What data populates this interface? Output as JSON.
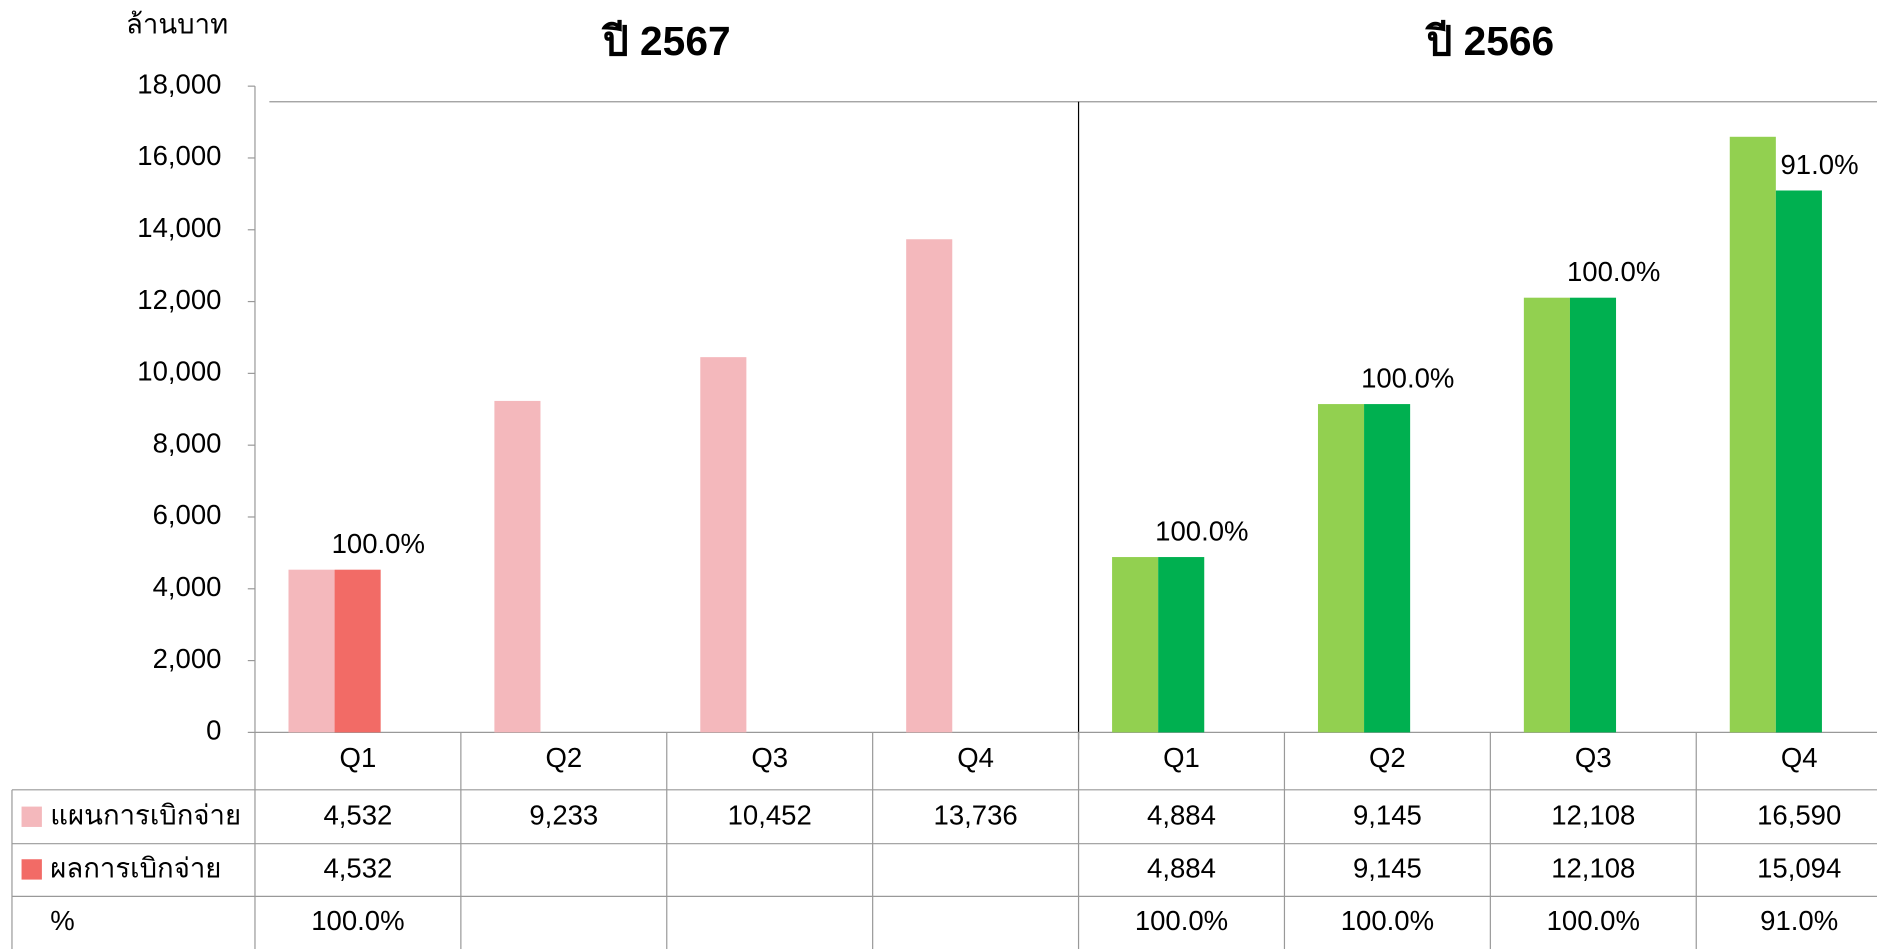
{
  "chart_data": {
    "type": "bar",
    "y_label": "ล้านบาท",
    "ylim": [
      0,
      18000
    ],
    "yticks": [
      0,
      {
        "value": 2000,
        "label": "2,000"
      },
      {
        "value": 4000,
        "label": "4,000"
      },
      {
        "value": 6000,
        "label": "6,000"
      },
      {
        "value": 8000,
        "label": "8,000"
      },
      {
        "value": 10000,
        "label": "10,000"
      },
      {
        "value": 12000,
        "label": "12,000"
      },
      {
        "value": 14000,
        "label": "14,000"
      },
      {
        "value": 16000,
        "label": "16,000"
      },
      {
        "value": 18000,
        "label": "18,000"
      }
    ],
    "series": [
      {
        "name": "แผนการเบิกจ่าย",
        "color": "#f4b8bc"
      },
      {
        "name": "ผลการเบิกจ่าย",
        "color": "#f26b66"
      }
    ],
    "percent_name": "%",
    "groups": [
      {
        "title": "ปี 2567",
        "categories": [
          "Q1",
          "Q2",
          "Q3",
          "Q4"
        ],
        "colors": [
          "#f4b8bc",
          "#f26b66"
        ],
        "values": [
          [
            4532,
            9233,
            10452,
            13736
          ],
          [
            4532,
            null,
            null,
            null
          ]
        ],
        "value_labels": [
          [
            "4,532",
            "9,233",
            "10,452",
            "13,736"
          ],
          [
            "4,532",
            null,
            null,
            null
          ]
        ],
        "percent": [
          100,
          null,
          null,
          null
        ],
        "percent_labels": [
          "100.0%",
          null,
          null,
          null
        ]
      },
      {
        "title": "ปี 2566",
        "categories": [
          "Q1",
          "Q2",
          "Q3",
          "Q4"
        ],
        "colors": [
          "#92d050",
          "#00b050"
        ],
        "values": [
          [
            4884,
            9145,
            12108,
            16590
          ],
          [
            4884,
            9145,
            12108,
            15094
          ]
        ],
        "value_labels": [
          [
            "4,884",
            "9,145",
            "12,108",
            "16,590"
          ],
          [
            "4,884",
            "9,145",
            "12,108",
            "15,094"
          ]
        ],
        "percent": [
          100,
          100,
          100,
          91
        ],
        "percent_labels": [
          "100.0%",
          "100.0%",
          "100.0%",
          "91.0%"
        ]
      }
    ]
  }
}
